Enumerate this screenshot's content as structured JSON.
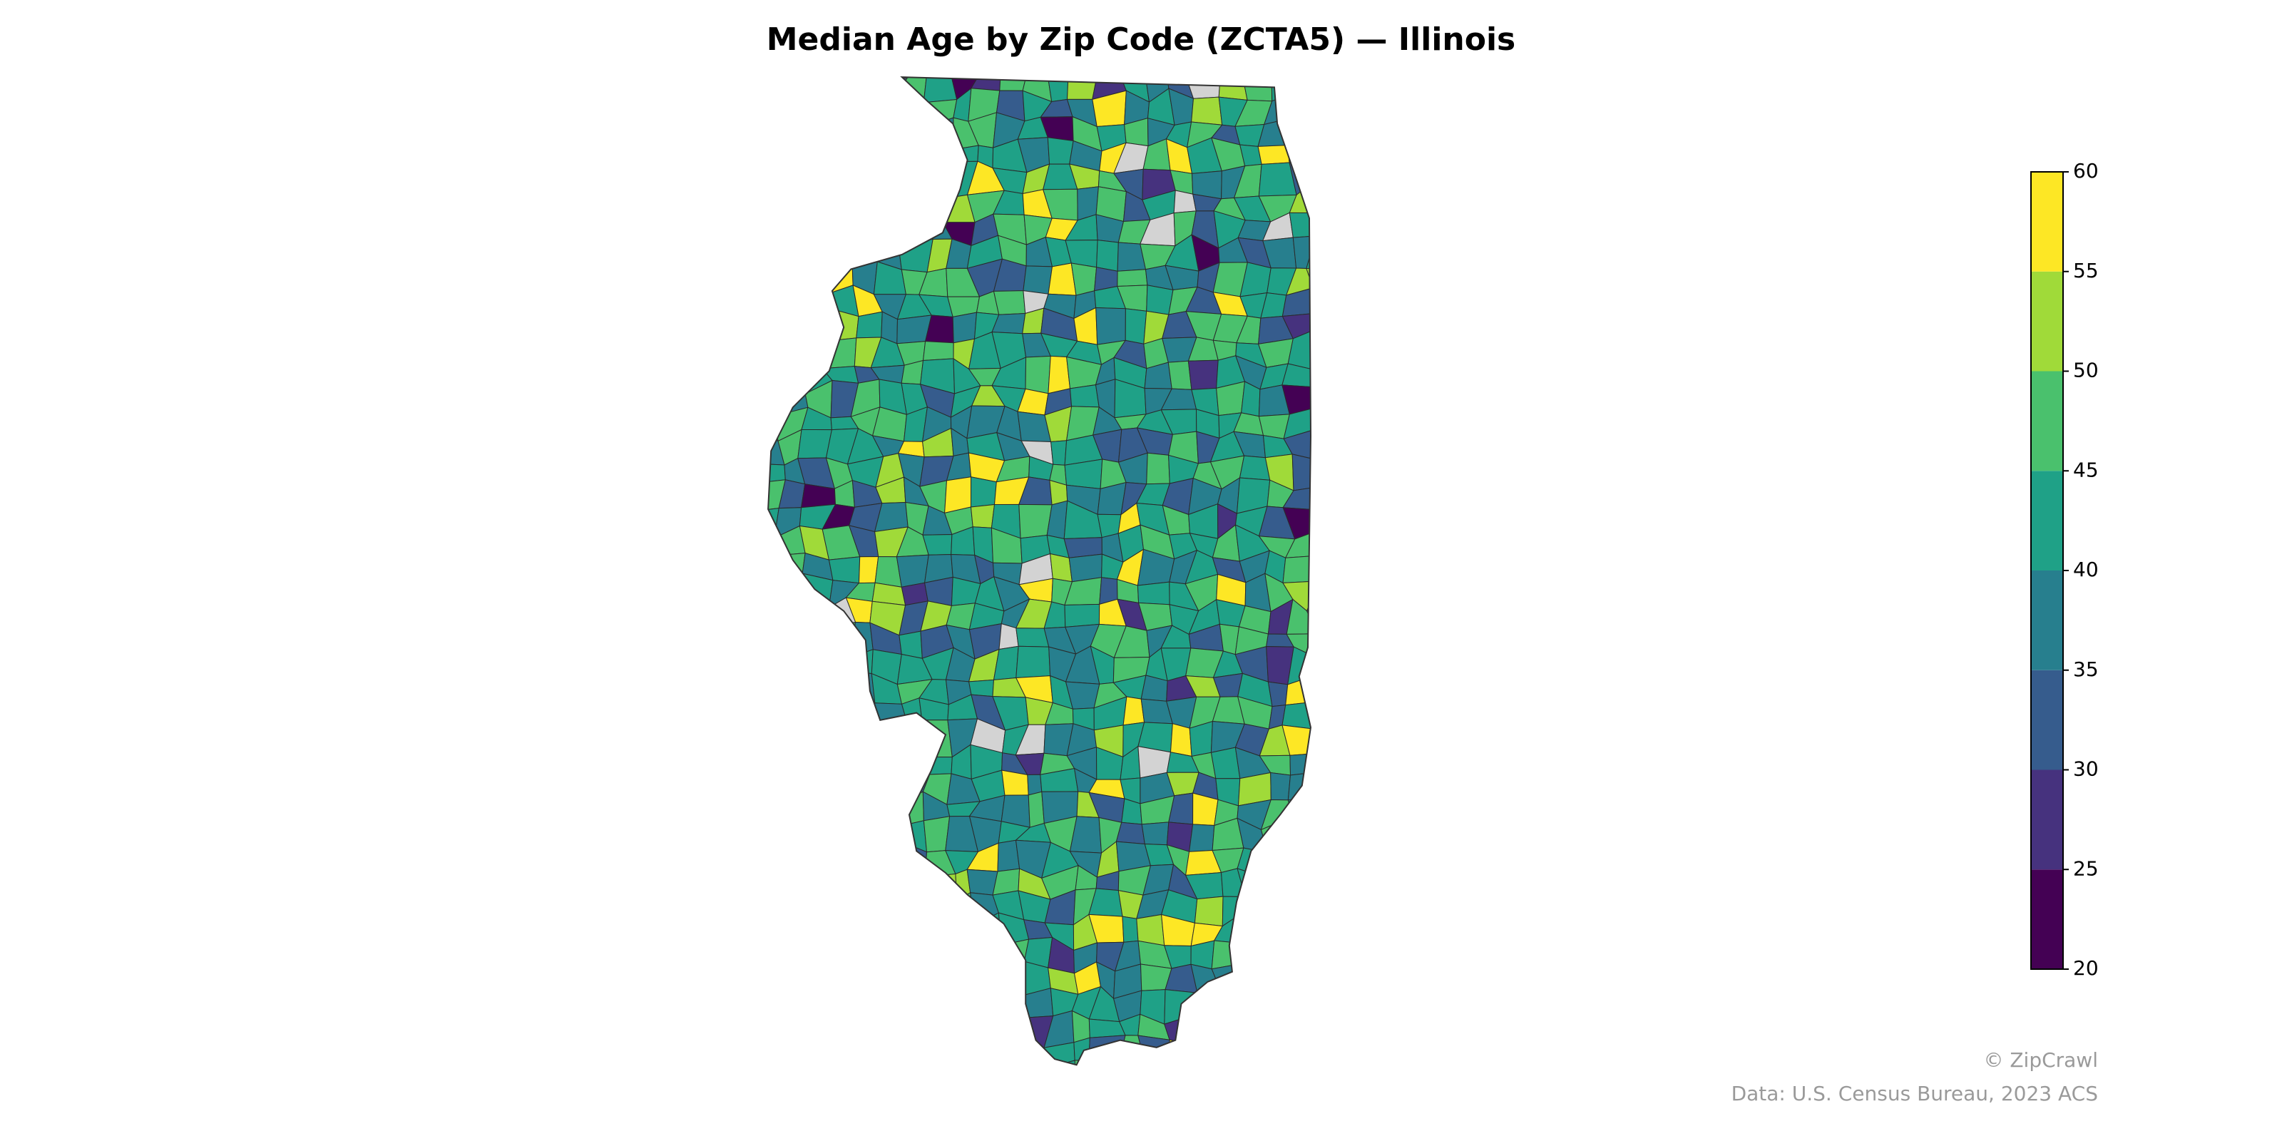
{
  "title": "Median Age by Zip Code (ZCTA5) — Illinois",
  "colorbar": {
    "ticks": [
      20,
      25,
      30,
      35,
      40,
      45,
      50,
      55,
      60
    ],
    "colors": [
      "#440154",
      "#46327e",
      "#365c8d",
      "#277f8e",
      "#1fa187",
      "#4ac16d",
      "#a0da39",
      "#fde725"
    ]
  },
  "credits": [
    "© ZipCrawl",
    "Data: U.S. Census Bureau, 2023 ACS"
  ]
}
